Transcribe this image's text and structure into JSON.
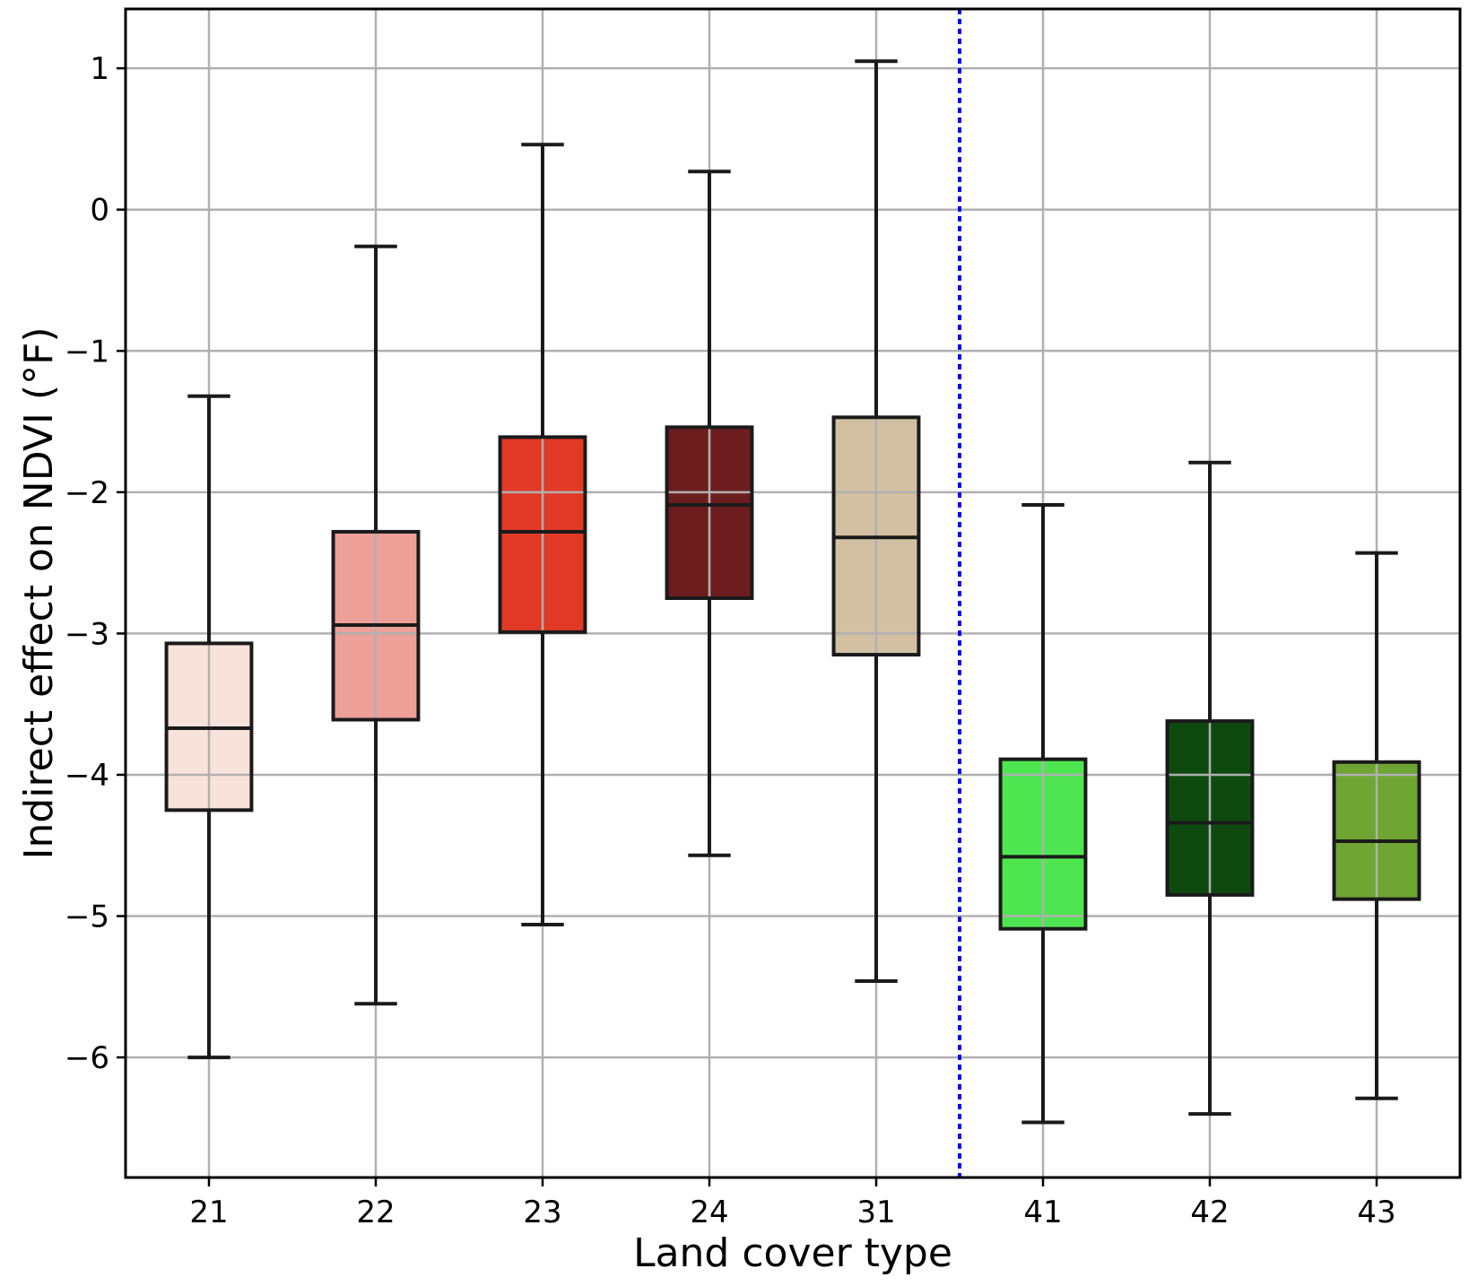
{
  "chart_data": {
    "type": "boxplot",
    "title": "",
    "xlabel": "Land cover type",
    "ylabel": "Indirect effect on NDVI (°F)",
    "ylim": [
      -6.85,
      1.42
    ],
    "yticks": [
      -6,
      -5,
      -4,
      -3,
      -2,
      -1,
      0,
      1
    ],
    "ytick_labels": [
      "−6",
      "−5",
      "−4",
      "−3",
      "−2",
      "−1",
      "0",
      "1"
    ],
    "grid": true,
    "categories": [
      "21",
      "22",
      "23",
      "24",
      "31",
      "41",
      "42",
      "43"
    ],
    "boxes": [
      {
        "category": "21",
        "whisker_low": -6.0,
        "q1": -4.25,
        "median": -3.67,
        "q3": -3.07,
        "whisker_high": -1.32,
        "color": "#f8e3da"
      },
      {
        "category": "22",
        "whisker_low": -5.62,
        "q1": -3.61,
        "median": -2.94,
        "q3": -2.28,
        "whisker_high": -0.26,
        "color": "#eda097"
      },
      {
        "category": "23",
        "whisker_low": -5.06,
        "q1": -2.99,
        "median": -2.28,
        "q3": -1.61,
        "whisker_high": 0.46,
        "color": "#e03a26"
      },
      {
        "category": "24",
        "whisker_low": -4.57,
        "q1": -2.75,
        "median": -2.09,
        "q3": -1.54,
        "whisker_high": 0.27,
        "color": "#6c1e1f"
      },
      {
        "category": "31",
        "whisker_low": -5.46,
        "q1": -3.15,
        "median": -2.32,
        "q3": -1.47,
        "whisker_high": 1.05,
        "color": "#d3c0a3"
      },
      {
        "category": "41",
        "whisker_low": -6.46,
        "q1": -5.09,
        "median": -4.58,
        "q3": -3.89,
        "whisker_high": -2.09,
        "color": "#4ee650"
      },
      {
        "category": "42",
        "whisker_low": -6.4,
        "q1": -4.85,
        "median": -4.34,
        "q3": -3.62,
        "whisker_high": -1.79,
        "color": "#0e4a0f"
      },
      {
        "category": "43",
        "whisker_low": -6.29,
        "q1": -4.88,
        "median": -4.47,
        "q3": -3.91,
        "whisker_high": -2.43,
        "color": "#6fa533"
      }
    ],
    "divider": {
      "between": [
        "31",
        "41"
      ],
      "style": "dotted",
      "color": "#0000ff"
    },
    "colors": {
      "grid": "#b0b0b0",
      "box_edge": "#1a1a1a",
      "axes": "#000000"
    }
  }
}
